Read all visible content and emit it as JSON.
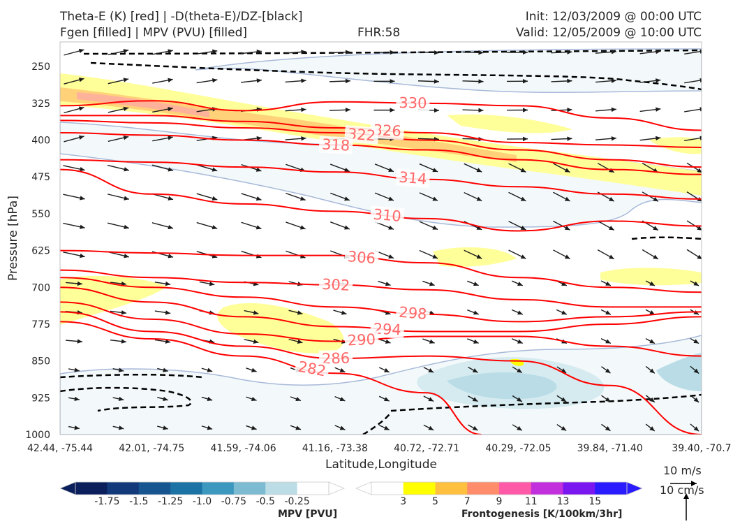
{
  "header": {
    "title_line1": "Theta-E (K) [red] | -D(theta-E)/DZ-[black]",
    "title_line2": "Fgen [filled] | MPV (PVU) [filled]",
    "fhr": "FHR:58",
    "init": "Init: 12/03/2009 @ 00:00 UTC",
    "valid": "Valid: 12/05/2009 @ 10:00 UTC"
  },
  "chart_data": {
    "type": "contour",
    "ylabel": "Pressure [hPa]",
    "xlabel": "Latitude,Longitude",
    "y_axis": {
      "scale": "linear",
      "inverted": true,
      "range": [
        200,
        1000
      ],
      "ticks": [
        250,
        325,
        400,
        475,
        550,
        625,
        700,
        775,
        850,
        925,
        1000
      ]
    },
    "x_ticks": [
      "42.44, -75.44",
      "42.01, -74.75",
      "41.59, -74.06",
      "41.16, -73.38",
      "40.72, -72.71",
      "40.29, -72.05",
      "39.84, -71.40",
      "39.40, -70.7"
    ],
    "theta_e_contours": [
      {
        "value": 330,
        "label": "330",
        "color": "#ff0000",
        "points": [
          [
            0,
            330
          ],
          [
            1,
            320
          ],
          [
            2,
            340
          ],
          [
            3,
            322
          ],
          [
            4,
            325
          ],
          [
            5,
            330
          ],
          [
            6,
            355
          ],
          [
            7,
            380
          ]
        ]
      },
      {
        "value": 326,
        "label": "326",
        "color": "#ff0000",
        "points": [
          [
            0,
            350
          ],
          [
            1,
            350
          ],
          [
            2,
            362
          ],
          [
            3,
            375
          ],
          [
            4,
            385
          ],
          [
            5,
            405
          ],
          [
            6,
            410
          ],
          [
            7,
            415
          ]
        ]
      },
      {
        "value": 322,
        "label": "322",
        "color": "#ff0000",
        "points": [
          [
            0,
            360
          ],
          [
            1,
            365
          ],
          [
            2,
            375
          ],
          [
            3,
            385
          ],
          [
            4,
            400
          ],
          [
            5,
            420
          ],
          [
            6,
            440
          ],
          [
            7,
            455
          ]
        ]
      },
      {
        "value": 318,
        "label": "318",
        "color": "#ff0000",
        "points": [
          [
            0,
            385
          ],
          [
            1,
            390
          ],
          [
            2,
            400
          ],
          [
            3,
            410
          ],
          [
            4,
            420
          ],
          [
            5,
            440
          ],
          [
            6,
            460
          ],
          [
            7,
            470
          ]
        ]
      },
      {
        "value": 314,
        "label": "314",
        "color": "#ff0000",
        "points": [
          [
            0,
            440
          ],
          [
            1,
            445
          ],
          [
            2,
            455
          ],
          [
            3,
            465
          ],
          [
            4,
            480
          ],
          [
            5,
            495
          ],
          [
            6,
            510
          ],
          [
            7,
            520
          ]
        ]
      },
      {
        "value": 310,
        "label": "310",
        "color": "#ff0000",
        "points": [
          [
            0,
            460
          ],
          [
            1,
            510
          ],
          [
            2,
            530
          ],
          [
            3,
            545
          ],
          [
            4,
            560
          ],
          [
            5,
            585
          ],
          [
            6,
            565
          ],
          [
            7,
            575
          ]
        ]
      },
      {
        "value": 306,
        "label": "306",
        "color": "#ff0000",
        "points": [
          [
            0,
            625
          ],
          [
            1,
            630
          ],
          [
            2,
            635
          ],
          [
            3,
            635
          ],
          [
            4,
            650
          ],
          [
            5,
            680
          ],
          [
            6,
            700
          ],
          [
            7,
            710
          ]
        ]
      },
      {
        "value": 302,
        "label": "302",
        "color": "#ff0000",
        "points": [
          [
            0,
            665
          ],
          [
            1,
            680
          ],
          [
            2,
            690
          ],
          [
            3,
            695
          ],
          [
            4,
            705
          ],
          [
            5,
            725
          ],
          [
            6,
            740
          ],
          [
            7,
            740
          ]
        ]
      },
      {
        "value": 298,
        "label": "298",
        "color": "#ff0000",
        "points": [
          [
            0,
            680
          ],
          [
            1,
            700
          ],
          [
            2,
            720
          ],
          [
            3,
            740
          ],
          [
            4,
            755
          ],
          [
            5,
            770
          ],
          [
            6,
            760
          ],
          [
            7,
            750
          ]
        ]
      },
      {
        "value": 294,
        "label": "294",
        "color": "#ff0000",
        "points": [
          [
            0,
            700
          ],
          [
            1,
            730
          ],
          [
            2,
            760
          ],
          [
            3,
            780
          ],
          [
            4,
            790
          ],
          [
            5,
            790
          ],
          [
            6,
            775
          ],
          [
            7,
            760
          ]
        ]
      },
      {
        "value": 290,
        "label": "290",
        "color": "#ff0000",
        "points": [
          [
            0,
            730
          ],
          [
            1,
            765
          ],
          [
            2,
            795
          ],
          [
            3,
            810
          ],
          [
            4,
            800
          ],
          [
            5,
            800
          ],
          [
            6,
            820
          ],
          [
            7,
            840
          ]
        ]
      },
      {
        "value": 286,
        "label": "286",
        "color": "#ff0000",
        "points": [
          [
            0,
            750
          ],
          [
            1,
            790
          ],
          [
            2,
            820
          ],
          [
            3,
            845
          ],
          [
            4,
            840
          ],
          [
            5,
            850
          ],
          [
            6,
            900
          ],
          [
            7,
            1000
          ]
        ]
      },
      {
        "value": 282,
        "label": "282",
        "color": "#ff0000",
        "points": [
          [
            0,
            770
          ],
          [
            1,
            805
          ],
          [
            2,
            840
          ],
          [
            3,
            875
          ],
          [
            4,
            915
          ],
          [
            4.6,
            1000
          ]
        ]
      }
    ],
    "mpv_colorbar": {
      "label": "MPV [PVU]",
      "ticks": [
        "-1.75",
        "-1.5",
        "-1.25",
        "-1.0",
        "-0.75",
        "-0.5",
        "-0.25"
      ],
      "colors": [
        "#0b1f5c",
        "#123a7a",
        "#165590",
        "#1a72a5",
        "#3d98bf",
        "#7dbbd3",
        "#bcdce6",
        "#ffffff"
      ]
    },
    "fgen_colorbar": {
      "label": "Frontogenesis [K/100km/3hr]",
      "ticks": [
        "3",
        "5",
        "7",
        "9",
        "11",
        "13",
        "15"
      ],
      "colors": [
        "#ffffff",
        "#ffff00",
        "#ffbf3f",
        "#ff8c6a",
        "#ff5aa8",
        "#c22fdd",
        "#7a16f0",
        "#2b1cff"
      ]
    },
    "vector_reference": {
      "wind_label": "10 m/s",
      "vertical_label": "10 cm/s"
    }
  }
}
